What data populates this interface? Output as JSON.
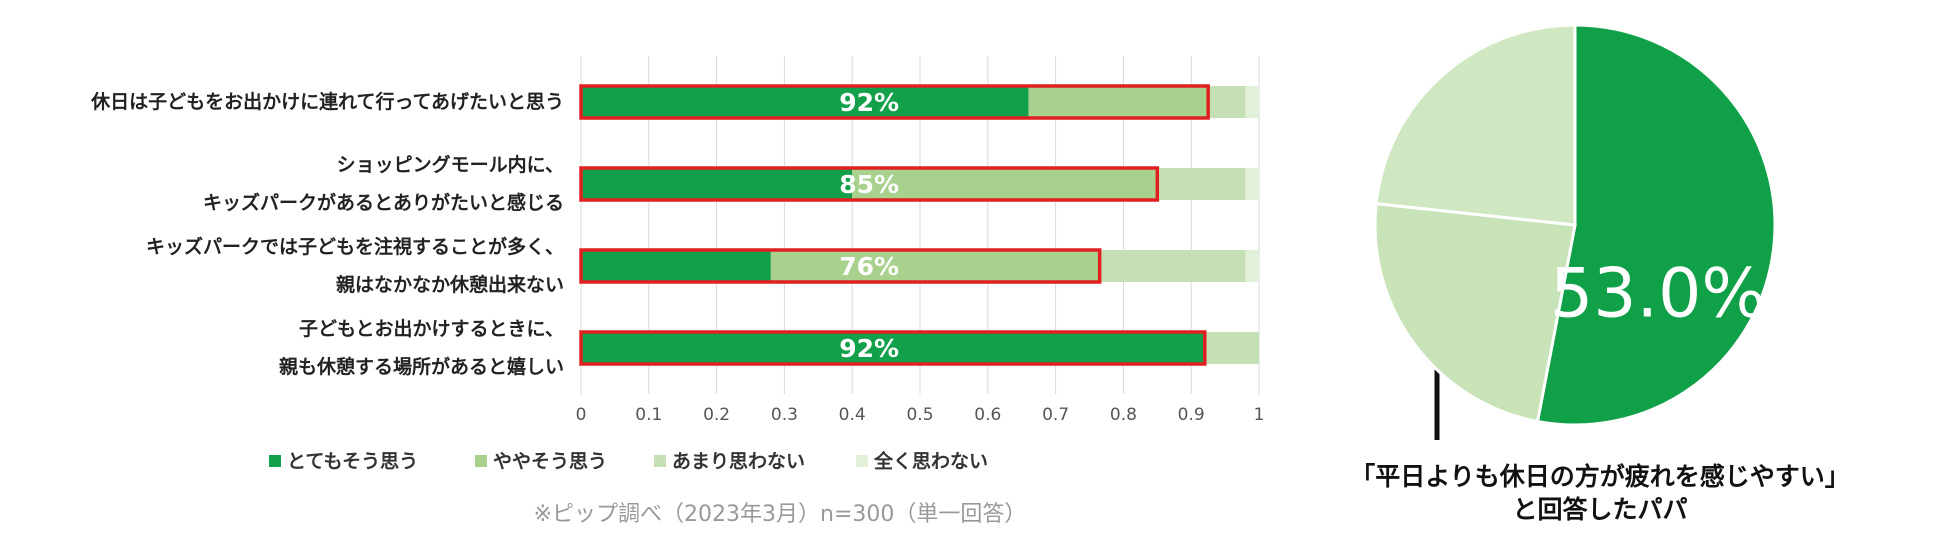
{
  "chart_data": [
    {
      "type": "stacked-barh",
      "categories": [
        "休日は子どもをお出かけに連れて行ってあげたいと思う",
        "ショッピングモール内に、\nキッズパークがあるとありがたいと感じる",
        "キッズパークでは子どもを注視することが多く、\n親はなかなか休憩出来ない",
        "子どもとお出かけするときに、\n親も休憩する場所があると嬉しい"
      ],
      "series": [
        {
          "name": "とてもそう思う",
          "color": "#12a04a",
          "values": [
            0.66,
            0.4,
            0.28,
            0.92
          ]
        },
        {
          "name": "ややそう思う",
          "color": "#a9d18e",
          "values": [
            0.265,
            0.45,
            0.485,
            0.0
          ]
        },
        {
          "name": "あまり思わない",
          "color": "#c5e0b4",
          "values": [
            0.055,
            0.13,
            0.215,
            0.08
          ]
        },
        {
          "name": "全く思わない",
          "color": "#e2f0d9",
          "values": [
            0.02,
            0.02,
            0.02,
            0.0
          ]
        }
      ],
      "highlight_labels": [
        "92%",
        "85%",
        "76%",
        "92%"
      ],
      "highlight_color": "#e02020",
      "xlim": [
        0,
        1
      ],
      "xticks": [
        0,
        0.1,
        0.2,
        0.3,
        0.4,
        0.5,
        0.6,
        0.7,
        0.8,
        0.9,
        1
      ],
      "grid": true,
      "footnote": "※ピップ調べ（2023年3月）n=300（単一回答）"
    },
    {
      "type": "pie",
      "values": [
        53.0,
        23.7,
        23.3
      ],
      "value_labels": [
        "53.0%",
        null,
        null
      ],
      "colors": [
        "#10a048",
        "#c8e3b7",
        "#d0e8c2"
      ],
      "annotation": [
        "「平日よりも休日の方が疲れを感じやすい」",
        "と回答したパパ"
      ]
    }
  ]
}
